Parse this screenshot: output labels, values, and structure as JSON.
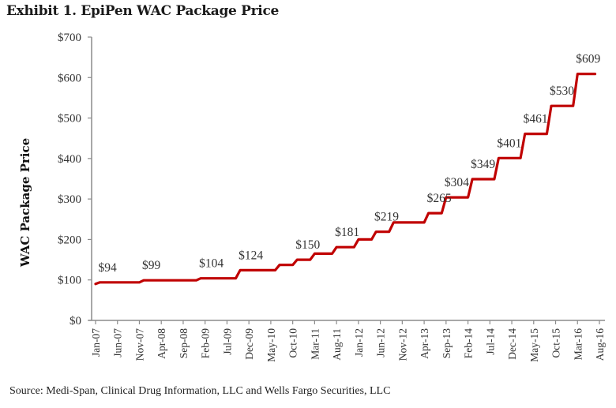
{
  "chart_data": {
    "type": "line",
    "subtype": "step",
    "title": "Exhibit 1. EpiPen WAC Package Price",
    "xlabel": "",
    "ylabel": "WAC Package Price",
    "source": "Source: Medi-Span, Clinical Drug Information, LLC and Wells Fargo Securities, LLC",
    "ylim": [
      0,
      700
    ],
    "yticks": [
      0,
      100,
      200,
      300,
      400,
      500,
      600,
      700
    ],
    "ytick_labels": [
      "$0",
      "$100",
      "$200",
      "$300",
      "$400",
      "$500",
      "$600",
      "$700"
    ],
    "xtick_labels": [
      "Jan-07",
      "Jun-07",
      "Nov-07",
      "Apr-08",
      "Sep-08",
      "Feb-09",
      "Jul-09",
      "Dec-09",
      "May-10",
      "Oct-10",
      "Mar-11",
      "Aug-11",
      "Jan-12",
      "Jun-12",
      "Nov-12",
      "Apr-13",
      "Sep-13",
      "Feb-14",
      "Jul-14",
      "Dec-14",
      "May-15",
      "Oct-15",
      "Mar-16",
      "Aug-16"
    ],
    "x_unit": "months since Jan-07 (ticks every 5 months)",
    "grid": false,
    "line_color": "#c00000",
    "series": [
      {
        "name": "EpiPen WAC Package Price",
        "points": [
          {
            "x": 0,
            "y": 90
          },
          {
            "x": 1,
            "y": 94
          },
          {
            "x": 10,
            "y": 94
          },
          {
            "x": 11,
            "y": 99
          },
          {
            "x": 23,
            "y": 99
          },
          {
            "x": 24,
            "y": 104
          },
          {
            "x": 32,
            "y": 104
          },
          {
            "x": 33,
            "y": 124
          },
          {
            "x": 41,
            "y": 124
          },
          {
            "x": 42,
            "y": 137
          },
          {
            "x": 45,
            "y": 137
          },
          {
            "x": 46,
            "y": 150
          },
          {
            "x": 49,
            "y": 150
          },
          {
            "x": 50,
            "y": 165
          },
          {
            "x": 54,
            "y": 165
          },
          {
            "x": 55,
            "y": 181
          },
          {
            "x": 59,
            "y": 181
          },
          {
            "x": 60,
            "y": 200
          },
          {
            "x": 63,
            "y": 200
          },
          {
            "x": 64,
            "y": 219
          },
          {
            "x": 67,
            "y": 219
          },
          {
            "x": 68,
            "y": 242
          },
          {
            "x": 75,
            "y": 242
          },
          {
            "x": 76,
            "y": 265
          },
          {
            "x": 79,
            "y": 265
          },
          {
            "x": 80,
            "y": 304
          },
          {
            "x": 85,
            "y": 304
          },
          {
            "x": 86,
            "y": 349
          },
          {
            "x": 91,
            "y": 349
          },
          {
            "x": 92,
            "y": 401
          },
          {
            "x": 97,
            "y": 401
          },
          {
            "x": 98,
            "y": 461
          },
          {
            "x": 103,
            "y": 461
          },
          {
            "x": 104,
            "y": 530
          },
          {
            "x": 109,
            "y": 530
          },
          {
            "x": 110,
            "y": 609
          },
          {
            "x": 114,
            "y": 609
          }
        ]
      }
    ],
    "annotations": [
      {
        "text": "$94",
        "x": 1,
        "y": 94
      },
      {
        "text": "$99",
        "x": 11,
        "y": 99
      },
      {
        "text": "$104",
        "x": 24,
        "y": 104
      },
      {
        "text": "$124",
        "x": 33,
        "y": 124
      },
      {
        "text": "$150",
        "x": 46,
        "y": 150
      },
      {
        "text": "$181",
        "x": 55,
        "y": 181
      },
      {
        "text": "$219",
        "x": 64,
        "y": 219
      },
      {
        "text": "$265",
        "x": 76,
        "y": 265
      },
      {
        "text": "$304",
        "x": 80,
        "y": 304
      },
      {
        "text": "$349",
        "x": 86,
        "y": 349
      },
      {
        "text": "$401",
        "x": 92,
        "y": 401
      },
      {
        "text": "$461",
        "x": 98,
        "y": 461
      },
      {
        "text": "$530",
        "x": 104,
        "y": 530
      },
      {
        "text": "$609",
        "x": 110,
        "y": 609
      }
    ]
  }
}
